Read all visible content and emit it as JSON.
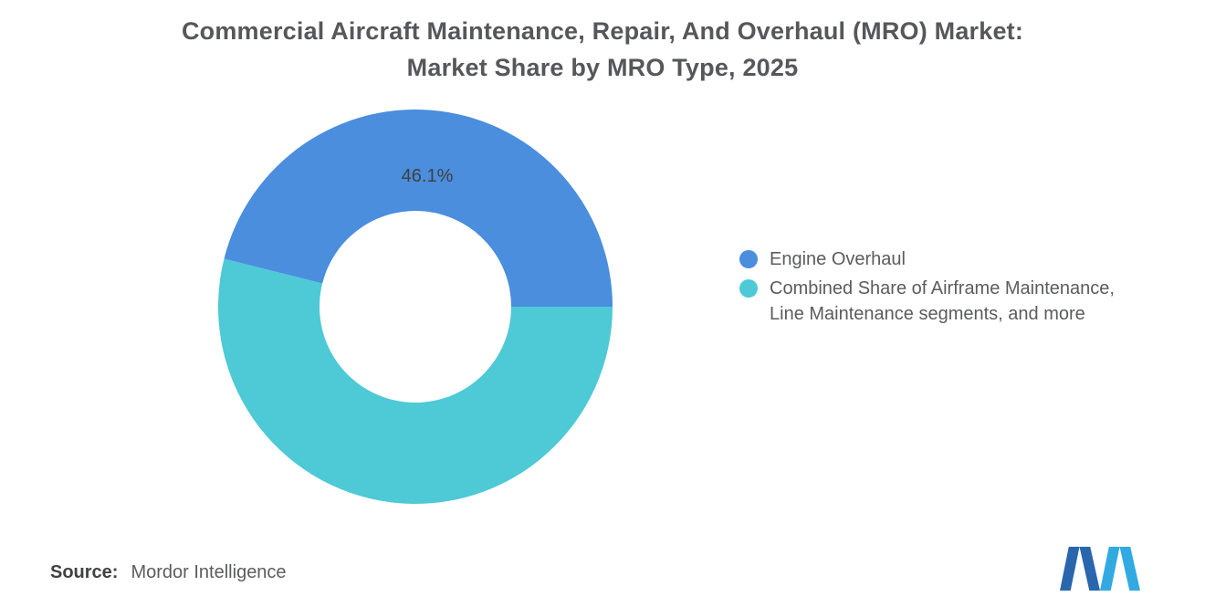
{
  "title": {
    "line1": "Commercial Aircraft Maintenance, Repair, And Overhaul (MRO) Market:",
    "line2": "Market Share by MRO Type, 2025"
  },
  "chart_data": {
    "type": "pie",
    "subtype": "donut",
    "title": "Commercial Aircraft Maintenance, Repair, And Overhaul (MRO) Market: Market Share by MRO Type, 2025",
    "unit": "%",
    "slices": [
      {
        "label": "Engine Overhaul",
        "value": 46.1,
        "color": "#4a8edd",
        "data_label": "46.1%"
      },
      {
        "label": "Combined Share of Airframe Maintenance, Line Maintenance segments, and more",
        "value": 53.9,
        "color": "#4ec9d6",
        "data_label": ""
      }
    ],
    "start_angle_deg": 0,
    "direction": "counterclockwise",
    "inner_radius_ratio": 0.486,
    "legend_position": "right",
    "data_label_color": "#404040"
  },
  "legend": {
    "items": [
      {
        "label": "Engine Overhaul",
        "color": "#4a8edd",
        "lines": [
          "Engine Overhaul"
        ]
      },
      {
        "label": "Combined Share of Airframe Maintenance, Line Maintenance segments, and more",
        "color": "#4ec9d6",
        "lines": [
          "Combined Share of Airframe Maintenance,",
          "Line Maintenance segments, and more"
        ]
      }
    ]
  },
  "source": {
    "label": "Source:",
    "value": "Mordor Intelligence"
  },
  "logo": {
    "name": "mordor-intelligence-logo",
    "color_dark": "#2a66ae",
    "color_light": "#31aae1"
  }
}
